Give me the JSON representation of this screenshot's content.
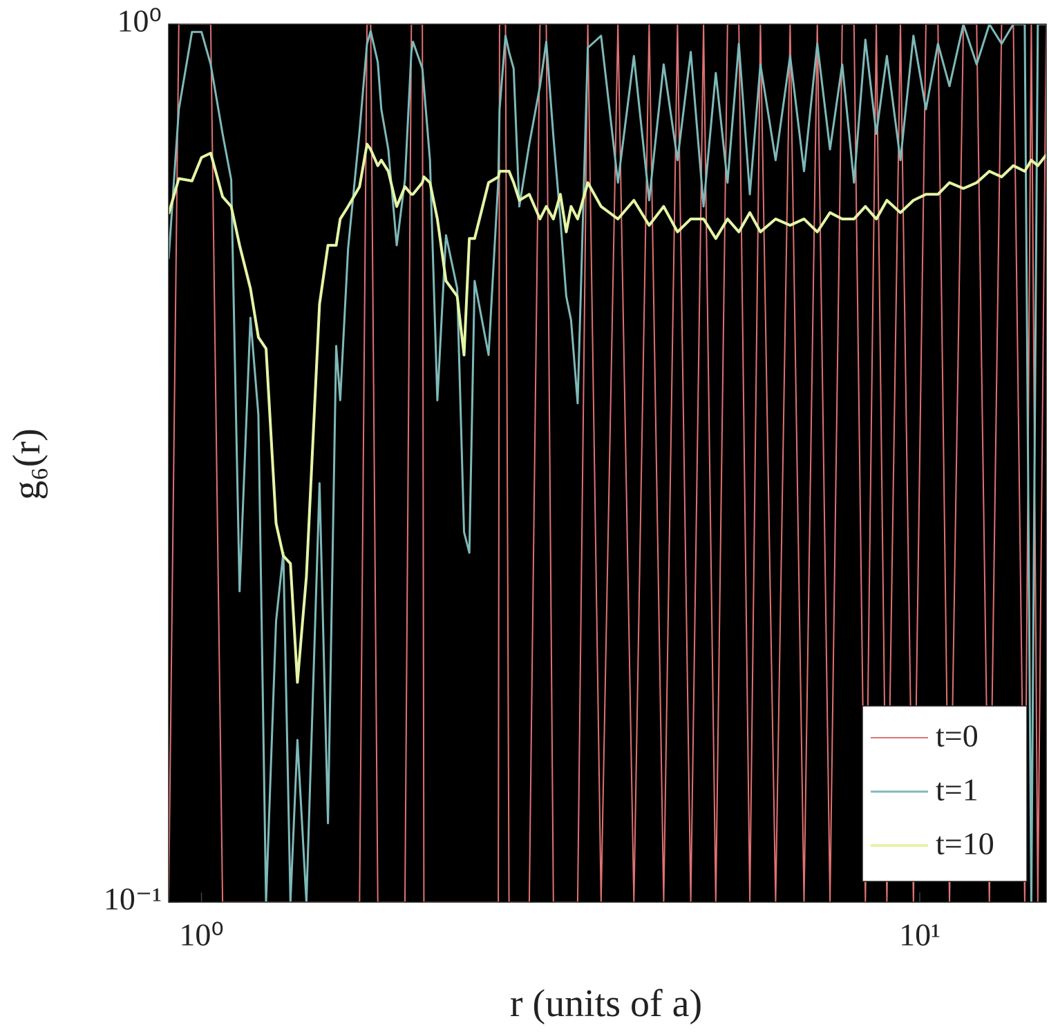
{
  "chart_data": {
    "type": "line",
    "xlabel": "r (units of a)",
    "ylabel": "g₆(r)",
    "xscale": "log",
    "yscale": "log",
    "xlim": [
      0.9,
      15
    ],
    "ylim": [
      0.1,
      1
    ],
    "xticks": [
      {
        "value": 1,
        "label": "10⁰"
      },
      {
        "value": 10,
        "label": "10¹"
      }
    ],
    "yticks": [
      {
        "value": 0.1,
        "label": "10⁻¹"
      },
      {
        "value": 1,
        "label": "10⁰"
      }
    ],
    "legend": "lower right",
    "background": "#000000",
    "x": [
      0.9,
      0.93,
      0.97,
      1.0,
      1.03,
      1.07,
      1.1,
      1.13,
      1.17,
      1.2,
      1.23,
      1.27,
      1.3,
      1.33,
      1.36,
      1.4,
      1.46,
      1.5,
      1.54,
      1.56,
      1.6,
      1.66,
      1.7,
      1.72,
      1.76,
      1.78,
      1.82,
      1.87,
      1.92,
      1.96,
      1.97,
      2.03,
      2.04,
      2.08,
      2.13,
      2.19,
      2.27,
      2.32,
      2.36,
      2.4,
      2.51,
      2.59,
      2.6,
      2.65,
      2.68,
      2.72,
      2.77,
      2.86,
      2.96,
      3.02,
      3.09,
      3.16,
      3.22,
      3.27,
      3.34,
      3.45,
      3.6,
      3.8,
      4.0,
      4.2,
      4.4,
      4.6,
      4.8,
      5.0,
      5.2,
      5.4,
      5.6,
      5.8,
      6.0,
      6.3,
      6.6,
      6.9,
      7.2,
      7.5,
      7.8,
      8.1,
      8.4,
      8.7,
      9.0,
      9.4,
      9.8,
      10.2,
      10.6,
      11.0,
      11.5,
      12.0,
      12.5,
      13.0,
      13.5,
      14.0,
      14.3,
      14.6,
      15.0
    ],
    "series": [
      {
        "name": "t=0",
        "color": "#e07272",
        "width": 2,
        "values": [
          0.1,
          1,
          1,
          1,
          1,
          0.1,
          0.1,
          0.1,
          0.1,
          0.1,
          0.1,
          0.1,
          0.1,
          0.1,
          0.1,
          0.1,
          0.1,
          0.1,
          0.1,
          0.1,
          0.1,
          0.1,
          1,
          1,
          0.1,
          0.1,
          0.1,
          0.1,
          0.1,
          1,
          1,
          1,
          0.1,
          0.1,
          0.1,
          0.1,
          0.1,
          0.1,
          0.1,
          0.1,
          0.1,
          0.1,
          1,
          1,
          0.1,
          0.1,
          0.1,
          0.1,
          1,
          1,
          0.1,
          0.1,
          0.1,
          0.1,
          0.1,
          1,
          0.1,
          1,
          0.1,
          1,
          0.1,
          1,
          0.1,
          1,
          0.1,
          1,
          1,
          0.1,
          1,
          0.1,
          1,
          0.1,
          1,
          0.1,
          1,
          1,
          0.1,
          1,
          0.1,
          1,
          0.1,
          1,
          1,
          0.1,
          1,
          1,
          0.1,
          1,
          1,
          0.1,
          1,
          0.1,
          1
        ]
      },
      {
        "name": "t=1",
        "color": "#7fb9b9",
        "width": 3,
        "values": [
          0.54,
          0.8,
          0.98,
          0.98,
          0.9,
          0.75,
          0.665,
          0.226,
          0.463,
          0.359,
          0.1,
          0.209,
          0.25,
          0.1,
          0.153,
          0.1,
          0.3,
          0.123,
          0.43,
          0.373,
          0.555,
          0.755,
          0.95,
          0.982,
          0.905,
          0.8,
          0.72,
          0.56,
          0.665,
          0.93,
          0.955,
          0.89,
          0.85,
          0.7,
          0.373,
          0.575,
          0.5,
          0.264,
          0.25,
          0.51,
          0.42,
          0.665,
          0.8,
          0.97,
          0.93,
          0.89,
          0.62,
          0.73,
          0.85,
          0.955,
          0.745,
          0.6,
          0.49,
          0.46,
          0.37,
          0.94,
          0.97,
          0.66,
          0.92,
          0.63,
          0.9,
          0.7,
          0.93,
          0.62,
          0.88,
          0.66,
          0.95,
          0.64,
          0.9,
          0.7,
          0.92,
          0.68,
          0.95,
          0.72,
          0.9,
          0.66,
          0.96,
          0.75,
          0.92,
          0.7,
          0.97,
          0.8,
          0.95,
          0.85,
          1,
          0.9,
          1,
          0.95,
          1,
          1,
          0.1,
          1,
          1
        ]
      },
      {
        "name": "t=10",
        "color": "#e4f5a6",
        "width": 4,
        "values": [
          0.608,
          0.667,
          0.663,
          0.705,
          0.713,
          0.636,
          0.62,
          0.56,
          0.5,
          0.44,
          0.427,
          0.27,
          0.248,
          0.243,
          0.178,
          0.235,
          0.48,
          0.56,
          0.56,
          0.6,
          0.62,
          0.653,
          0.73,
          0.72,
          0.69,
          0.7,
          0.68,
          0.62,
          0.653,
          0.64,
          0.64,
          0.66,
          0.67,
          0.66,
          0.6,
          0.51,
          0.49,
          0.42,
          0.57,
          0.57,
          0.66,
          0.67,
          0.68,
          0.68,
          0.68,
          0.66,
          0.63,
          0.64,
          0.6,
          0.62,
          0.6,
          0.64,
          0.58,
          0.62,
          0.6,
          0.66,
          0.62,
          0.6,
          0.63,
          0.59,
          0.62,
          0.58,
          0.6,
          0.6,
          0.57,
          0.6,
          0.58,
          0.61,
          0.58,
          0.6,
          0.59,
          0.6,
          0.58,
          0.61,
          0.6,
          0.6,
          0.62,
          0.6,
          0.63,
          0.61,
          0.63,
          0.64,
          0.64,
          0.66,
          0.65,
          0.66,
          0.68,
          0.67,
          0.69,
          0.68,
          0.7,
          0.69,
          0.71
        ]
      }
    ]
  }
}
